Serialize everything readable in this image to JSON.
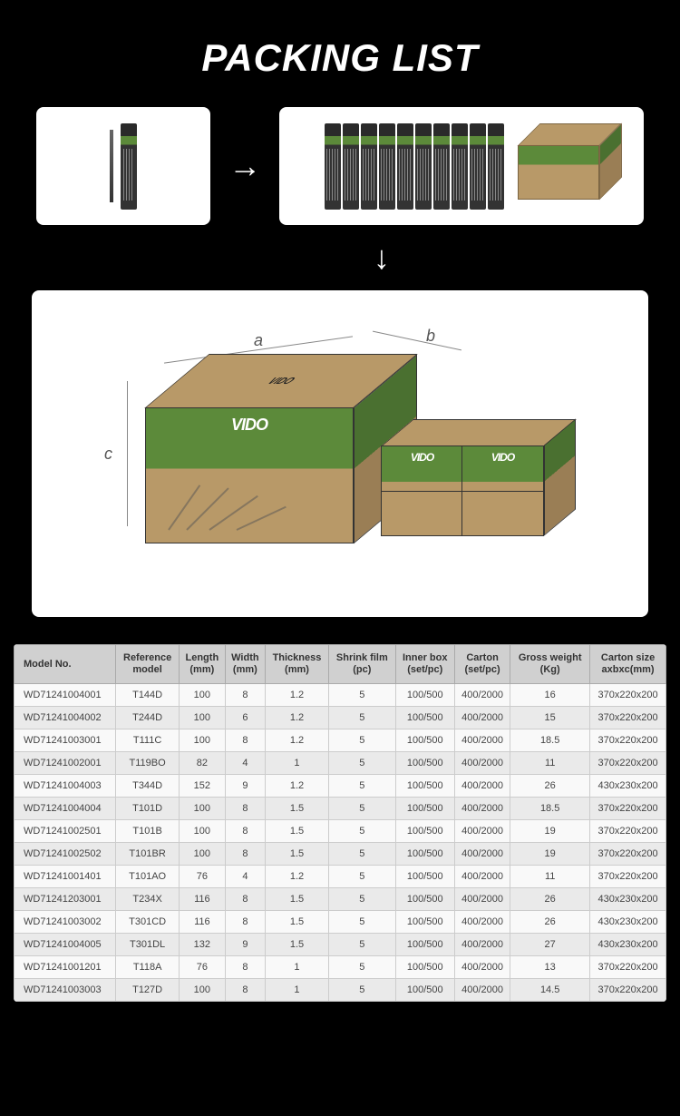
{
  "title": "PACKING LIST",
  "brand": "VIDO",
  "dimensions": {
    "a": "a",
    "b": "b",
    "c": "c"
  },
  "table": {
    "headers": [
      "Model No.",
      "Reference\nmodel",
      "Length\n(mm)",
      "Width\n(mm)",
      "Thickness\n(mm)",
      "Shrink film\n(pc)",
      "Inner box\n(set/pc)",
      "Carton\n(set/pc)",
      "Gross weight\n(Kg)",
      "Carton size\naxbxc(mm)"
    ],
    "rows": [
      [
        "WD71241004001",
        "T144D",
        "100",
        "8",
        "1.2",
        "5",
        "100/500",
        "400/2000",
        "16",
        "370x220x200"
      ],
      [
        "WD71241004002",
        "T244D",
        "100",
        "6",
        "1.2",
        "5",
        "100/500",
        "400/2000",
        "15",
        "370x220x200"
      ],
      [
        "WD71241003001",
        "T111C",
        "100",
        "8",
        "1.2",
        "5",
        "100/500",
        "400/2000",
        "18.5",
        "370x220x200"
      ],
      [
        "WD71241002001",
        "T119BO",
        "82",
        "4",
        "1",
        "5",
        "100/500",
        "400/2000",
        "11",
        "370x220x200"
      ],
      [
        "WD71241004003",
        "T344D",
        "152",
        "9",
        "1.2",
        "5",
        "100/500",
        "400/2000",
        "26",
        "430x230x200"
      ],
      [
        "WD71241004004",
        "T101D",
        "100",
        "8",
        "1.5",
        "5",
        "100/500",
        "400/2000",
        "18.5",
        "370x220x200"
      ],
      [
        "WD71241002501",
        "T101B",
        "100",
        "8",
        "1.5",
        "5",
        "100/500",
        "400/2000",
        "19",
        "370x220x200"
      ],
      [
        "WD71241002502",
        "T101BR",
        "100",
        "8",
        "1.5",
        "5",
        "100/500",
        "400/2000",
        "19",
        "370x220x200"
      ],
      [
        "WD71241001401",
        "T101AO",
        "76",
        "4",
        "1.2",
        "5",
        "100/500",
        "400/2000",
        "11",
        "370x220x200"
      ],
      [
        "WD71241203001",
        "T234X",
        "116",
        "8",
        "1.5",
        "5",
        "100/500",
        "400/2000",
        "26",
        "430x230x200"
      ],
      [
        "WD71241003002",
        "T301CD",
        "116",
        "8",
        "1.5",
        "5",
        "100/500",
        "400/2000",
        "26",
        "430x230x200"
      ],
      [
        "WD71241004005",
        "T301DL",
        "132",
        "9",
        "1.5",
        "5",
        "100/500",
        "400/2000",
        "27",
        "430x230x200"
      ],
      [
        "WD71241001201",
        "T118A",
        "76",
        "8",
        "1",
        "5",
        "100/500",
        "400/2000",
        "13",
        "370x220x200"
      ],
      [
        "WD71241003003",
        "T127D",
        "100",
        "8",
        "1",
        "5",
        "100/500",
        "400/2000",
        "14.5",
        "370x220x200"
      ]
    ]
  },
  "colors": {
    "background": "#000000",
    "card_bg": "#ffffff",
    "carton": "#b89968",
    "brand_green": "#5c8a3a",
    "header_bg": "#d0d0d0",
    "row_even": "#eaeaea",
    "row_odd": "#f9f9f9"
  }
}
